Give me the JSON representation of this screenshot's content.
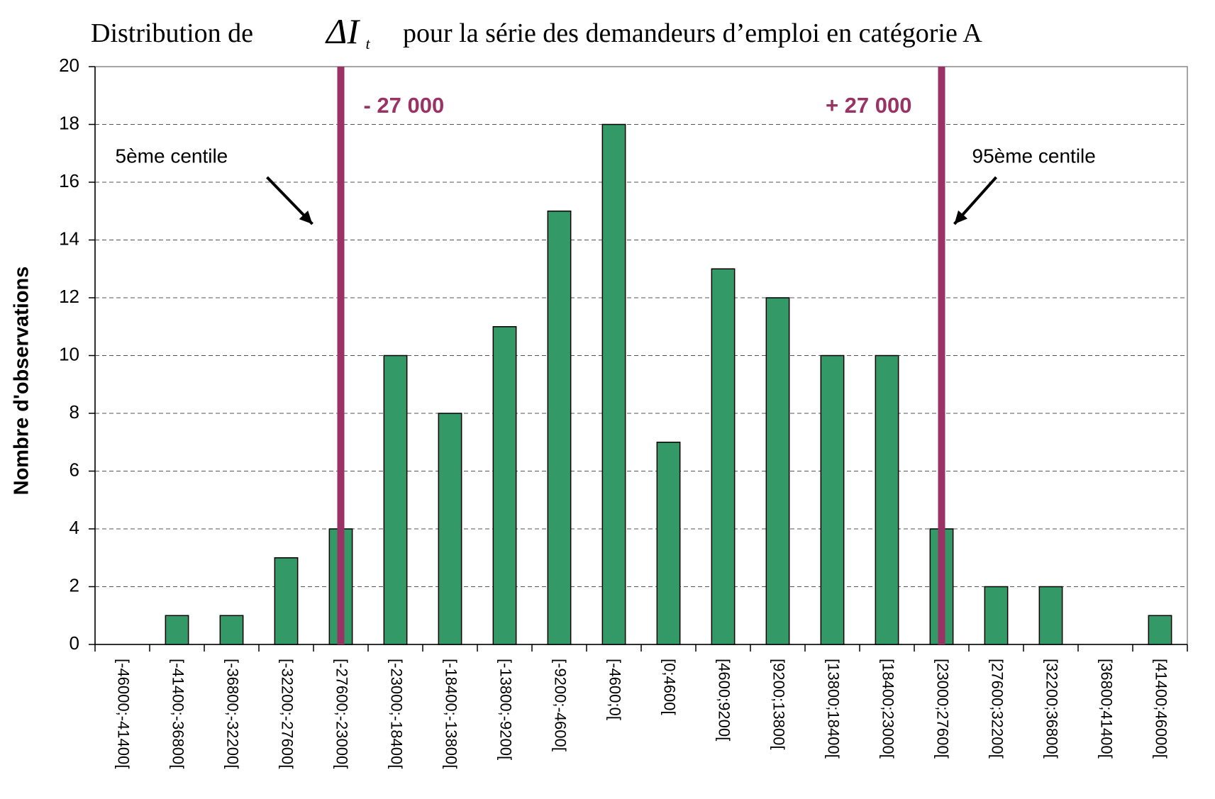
{
  "chart_data": {
    "type": "bar",
    "title_parts": [
      "Distribution de",
      "ΔI",
      "t",
      "pour la série des demandeurs d’emploi en catégorie A"
    ],
    "y_label": "Nombre d'observations",
    "categories": [
      "[-46000;-41400[",
      "[-41400;-36800[",
      "[-36800;-32200[",
      "[-32200;-27600[",
      "[-27600;-23000[",
      "[-23000;-18400[",
      "[-18400;-13800[",
      "[-13800;-9200[",
      "[-9200;-4600[",
      "[-4600;0[",
      "[0;4600[",
      "[4600;9200[",
      "[9200;13800[",
      "[13800;18400[",
      "[18400;23000[",
      "[23000;27600[",
      "[27600;32200[",
      "[32200;36800[",
      "[36800;41400[",
      "[41400;46000["
    ],
    "values": [
      0,
      1,
      1,
      3,
      4,
      10,
      8,
      11,
      15,
      18,
      7,
      13,
      12,
      10,
      10,
      4,
      2,
      2,
      0,
      1
    ],
    "color": "#339966",
    "ylim": [
      0,
      20
    ],
    "yticks": [
      0,
      2,
      4,
      6,
      8,
      10,
      12,
      14,
      16,
      18,
      20
    ],
    "grid": true,
    "vlines": [
      {
        "at": "[-27600;-23000[",
        "label": "- 27 000",
        "note": "5ème centile",
        "color": "#993366"
      },
      {
        "at": "[23000;27600[",
        "label": "+ 27 000",
        "note": "95ème centile",
        "color": "#993366"
      }
    ]
  }
}
